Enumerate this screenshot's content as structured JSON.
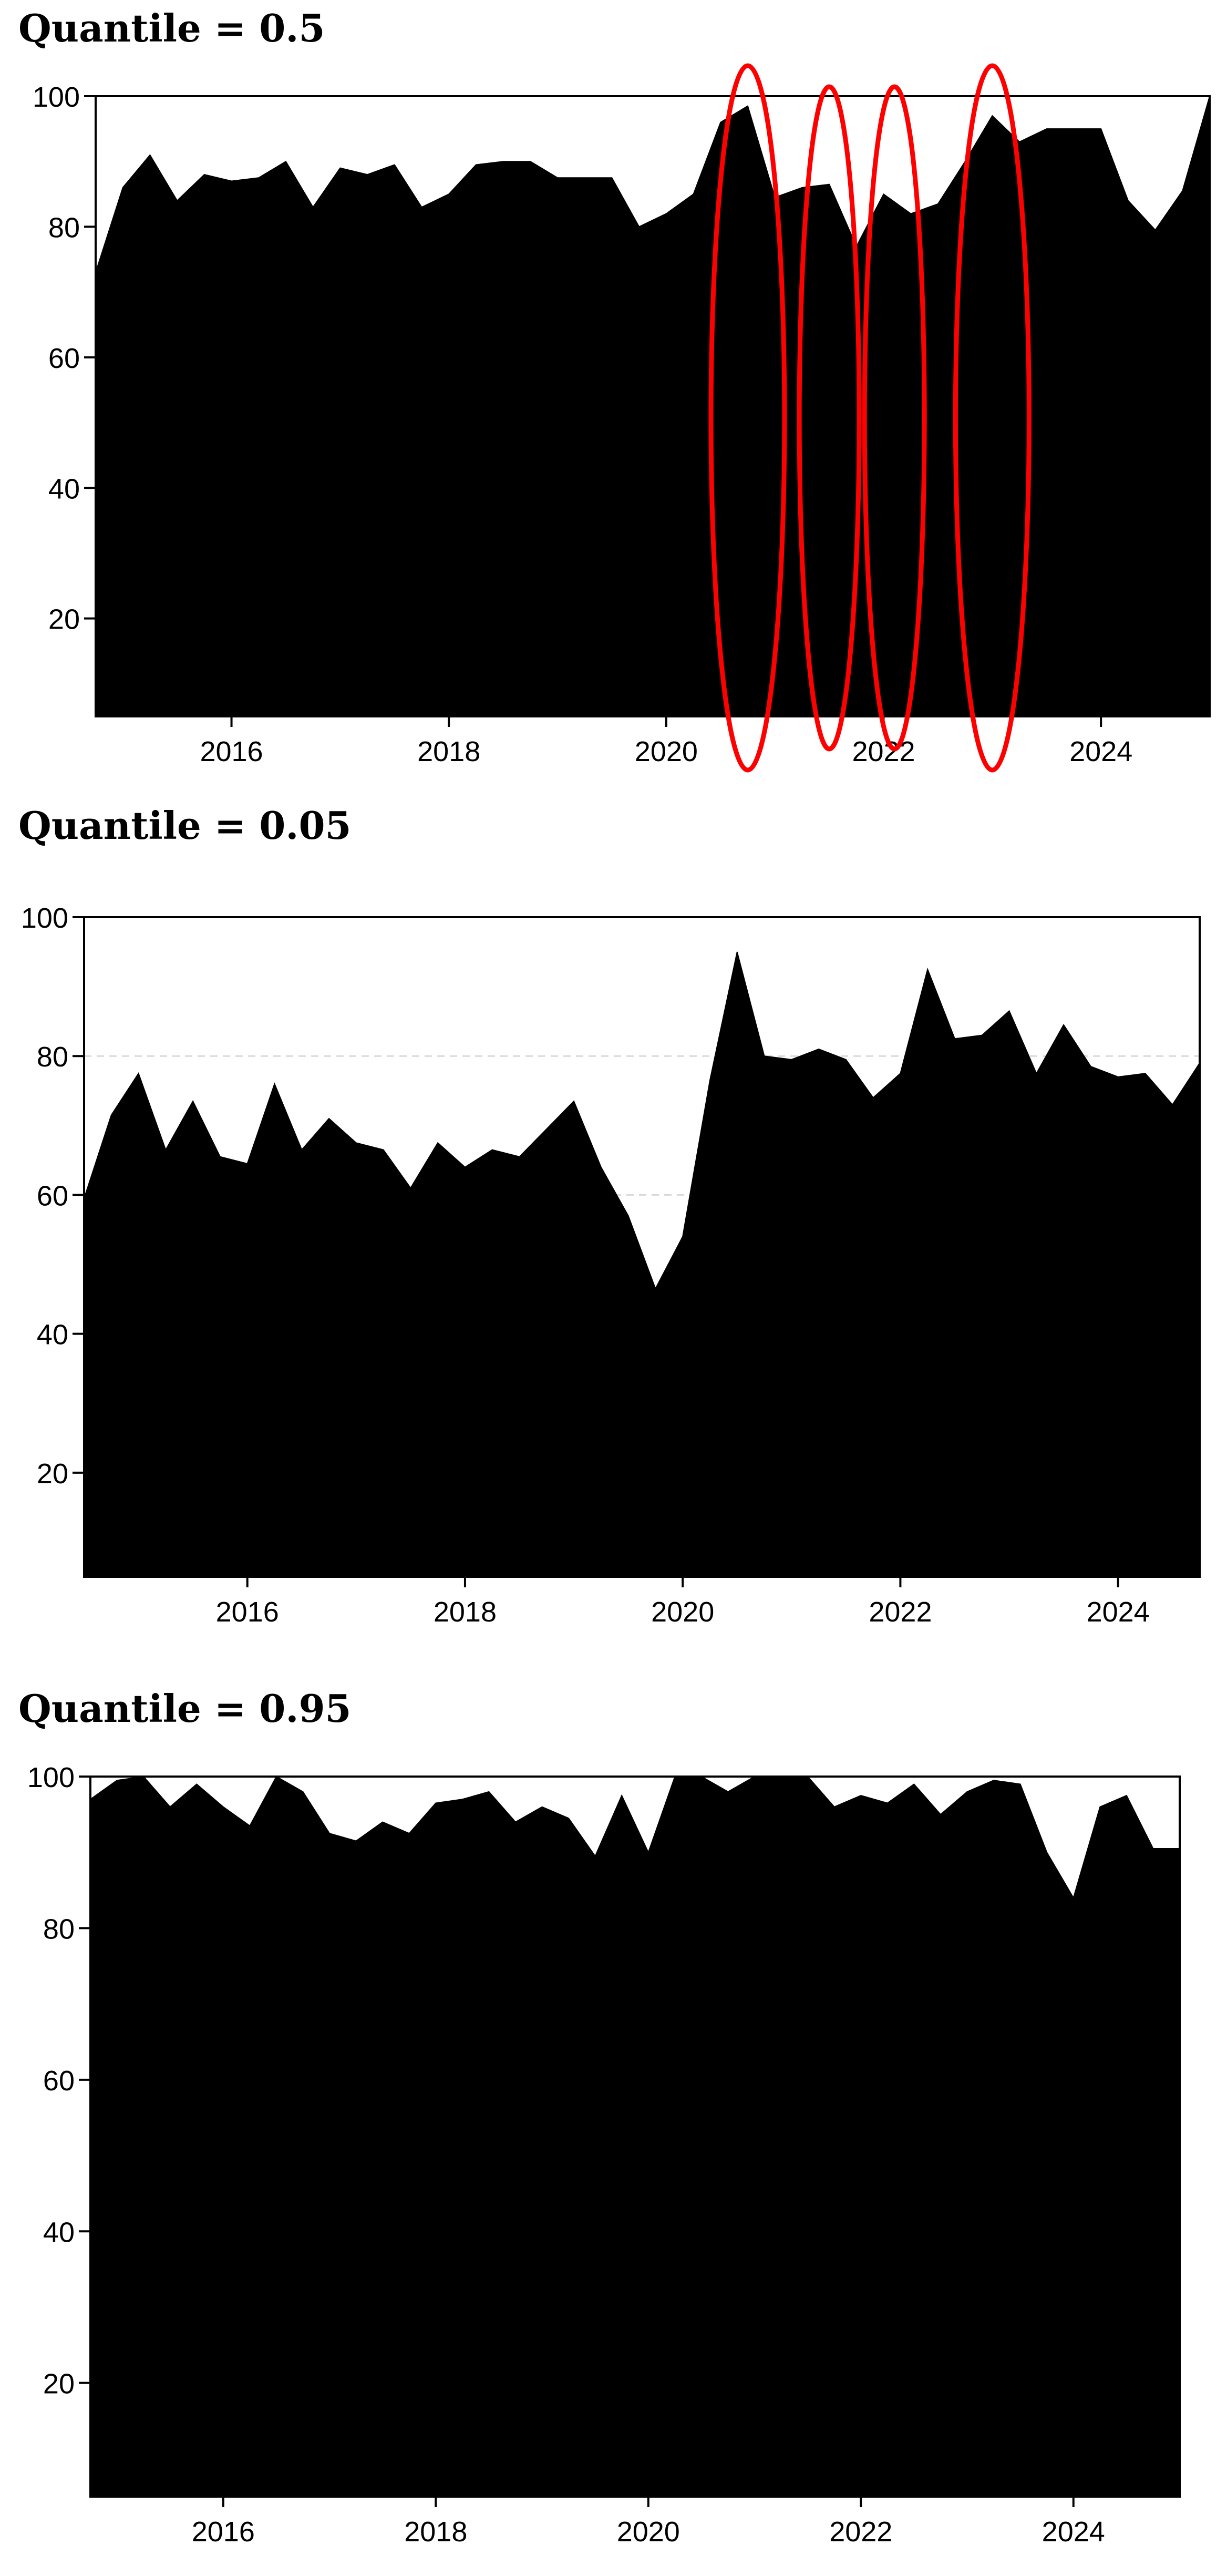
{
  "panels": [
    {
      "title": "Quantile = 0.5"
    },
    {
      "title": "Quantile = 0.05"
    },
    {
      "title": "Quantile = 0.95"
    }
  ],
  "chart_data": [
    {
      "type": "area",
      "title": "Quantile = 0.5",
      "xlabel": "",
      "ylabel": "",
      "fill": "#000000",
      "xlim": [
        2014.75,
        2025.0
      ],
      "ylim": [
        5,
        100
      ],
      "xticks": [
        2016,
        2018,
        2020,
        2022,
        2024
      ],
      "yticks": [
        20,
        40,
        60,
        80,
        100
      ],
      "grid": false,
      "highlight_color": "#ff0000",
      "highlights_x": [
        2020.75,
        2021.5,
        2022.1,
        2023.0
      ],
      "series": [
        {
          "x": [
            2014.75,
            2015.0,
            2015.25,
            2015.5,
            2015.75,
            2016.0,
            2016.25,
            2016.5,
            2016.75,
            2017.0,
            2017.25,
            2017.5,
            2017.75,
            2018.0,
            2018.25,
            2018.5,
            2018.75,
            2019.0,
            2019.25,
            2019.5,
            2019.75,
            2020.0,
            2020.25,
            2020.5,
            2020.75,
            2021.0,
            2021.25,
            2021.5,
            2021.75,
            2022.0,
            2022.25,
            2022.5,
            2022.75,
            2023.0,
            2023.25,
            2023.5,
            2023.75,
            2024.0,
            2024.25,
            2024.5,
            2024.75,
            2025.0
          ],
          "y": [
            73,
            86,
            91,
            84,
            88,
            87,
            87.5,
            90,
            83,
            89,
            88,
            89.5,
            83,
            85,
            89.5,
            90,
            90,
            87.5,
            87.5,
            87.5,
            80,
            82,
            85,
            96,
            98.5,
            84.5,
            86,
            86.5,
            77,
            85,
            82,
            83.5,
            90,
            97,
            93,
            95,
            95,
            95,
            84,
            79.5,
            85.5,
            100
          ]
        }
      ]
    },
    {
      "type": "area",
      "title": "Quantile = 0.05",
      "xlabel": "",
      "ylabel": "",
      "fill": "#000000",
      "xlim": [
        2014.5,
        2024.75
      ],
      "ylim": [
        5,
        100
      ],
      "xticks": [
        2016,
        2018,
        2020,
        2022,
        2024
      ],
      "yticks": [
        20,
        40,
        60,
        80,
        100
      ],
      "grid": true,
      "series": [
        {
          "x": [
            2014.5,
            2014.75,
            2015.0,
            2015.25,
            2015.5,
            2015.75,
            2016.0,
            2016.25,
            2016.5,
            2016.75,
            2017.0,
            2017.25,
            2017.5,
            2017.75,
            2018.0,
            2018.25,
            2018.5,
            2018.75,
            2019.0,
            2019.25,
            2019.5,
            2019.75,
            2020.0,
            2020.25,
            2020.5,
            2020.75,
            2021.0,
            2021.25,
            2021.5,
            2021.75,
            2022.0,
            2022.25,
            2022.5,
            2022.75,
            2023.0,
            2023.25,
            2023.5,
            2023.75,
            2024.0,
            2024.25,
            2024.5,
            2024.75
          ],
          "y": [
            59.5,
            71.5,
            77.5,
            66.5,
            73.5,
            65.5,
            64.5,
            76,
            66.5,
            71,
            67.5,
            66.5,
            61,
            67.5,
            64,
            66.5,
            65.5,
            69.5,
            73.5,
            64,
            57,
            46.5,
            54,
            76.5,
            95,
            80,
            79.5,
            81,
            79.5,
            74,
            77.5,
            92.5,
            82.5,
            83,
            86.5,
            77.5,
            84.5,
            78.5,
            77,
            77.5,
            73,
            79
          ]
        }
      ]
    },
    {
      "type": "area",
      "title": "Quantile = 0.95",
      "xlabel": "",
      "ylabel": "",
      "fill": "#000000",
      "xlim": [
        2014.75,
        2025.0
      ],
      "ylim": [
        5,
        100
      ],
      "xticks": [
        2016,
        2018,
        2020,
        2022,
        2024
      ],
      "yticks": [
        20,
        40,
        60,
        80,
        100
      ],
      "grid": false,
      "series": [
        {
          "x": [
            2014.75,
            2015.0,
            2015.25,
            2015.5,
            2015.75,
            2016.0,
            2016.25,
            2016.5,
            2016.75,
            2017.0,
            2017.25,
            2017.5,
            2017.75,
            2018.0,
            2018.25,
            2018.5,
            2018.75,
            2019.0,
            2019.25,
            2019.5,
            2019.75,
            2020.0,
            2020.25,
            2020.5,
            2020.75,
            2021.0,
            2021.25,
            2021.5,
            2021.75,
            2022.0,
            2022.25,
            2022.5,
            2022.75,
            2023.0,
            2023.25,
            2023.5,
            2023.75,
            2024.0,
            2024.25,
            2024.5,
            2024.75,
            2025.0
          ],
          "y": [
            97,
            99.5,
            100,
            96,
            99,
            96,
            93.5,
            100,
            98,
            92.5,
            91.5,
            94,
            92.5,
            96.5,
            97,
            98,
            94,
            96,
            94.5,
            89.5,
            97.5,
            90,
            100,
            100,
            98,
            100,
            100,
            100,
            96,
            97.5,
            96.5,
            99,
            95,
            98,
            99.5,
            99,
            90,
            84,
            96,
            97.5,
            90.5,
            90.5
          ]
        }
      ]
    }
  ]
}
